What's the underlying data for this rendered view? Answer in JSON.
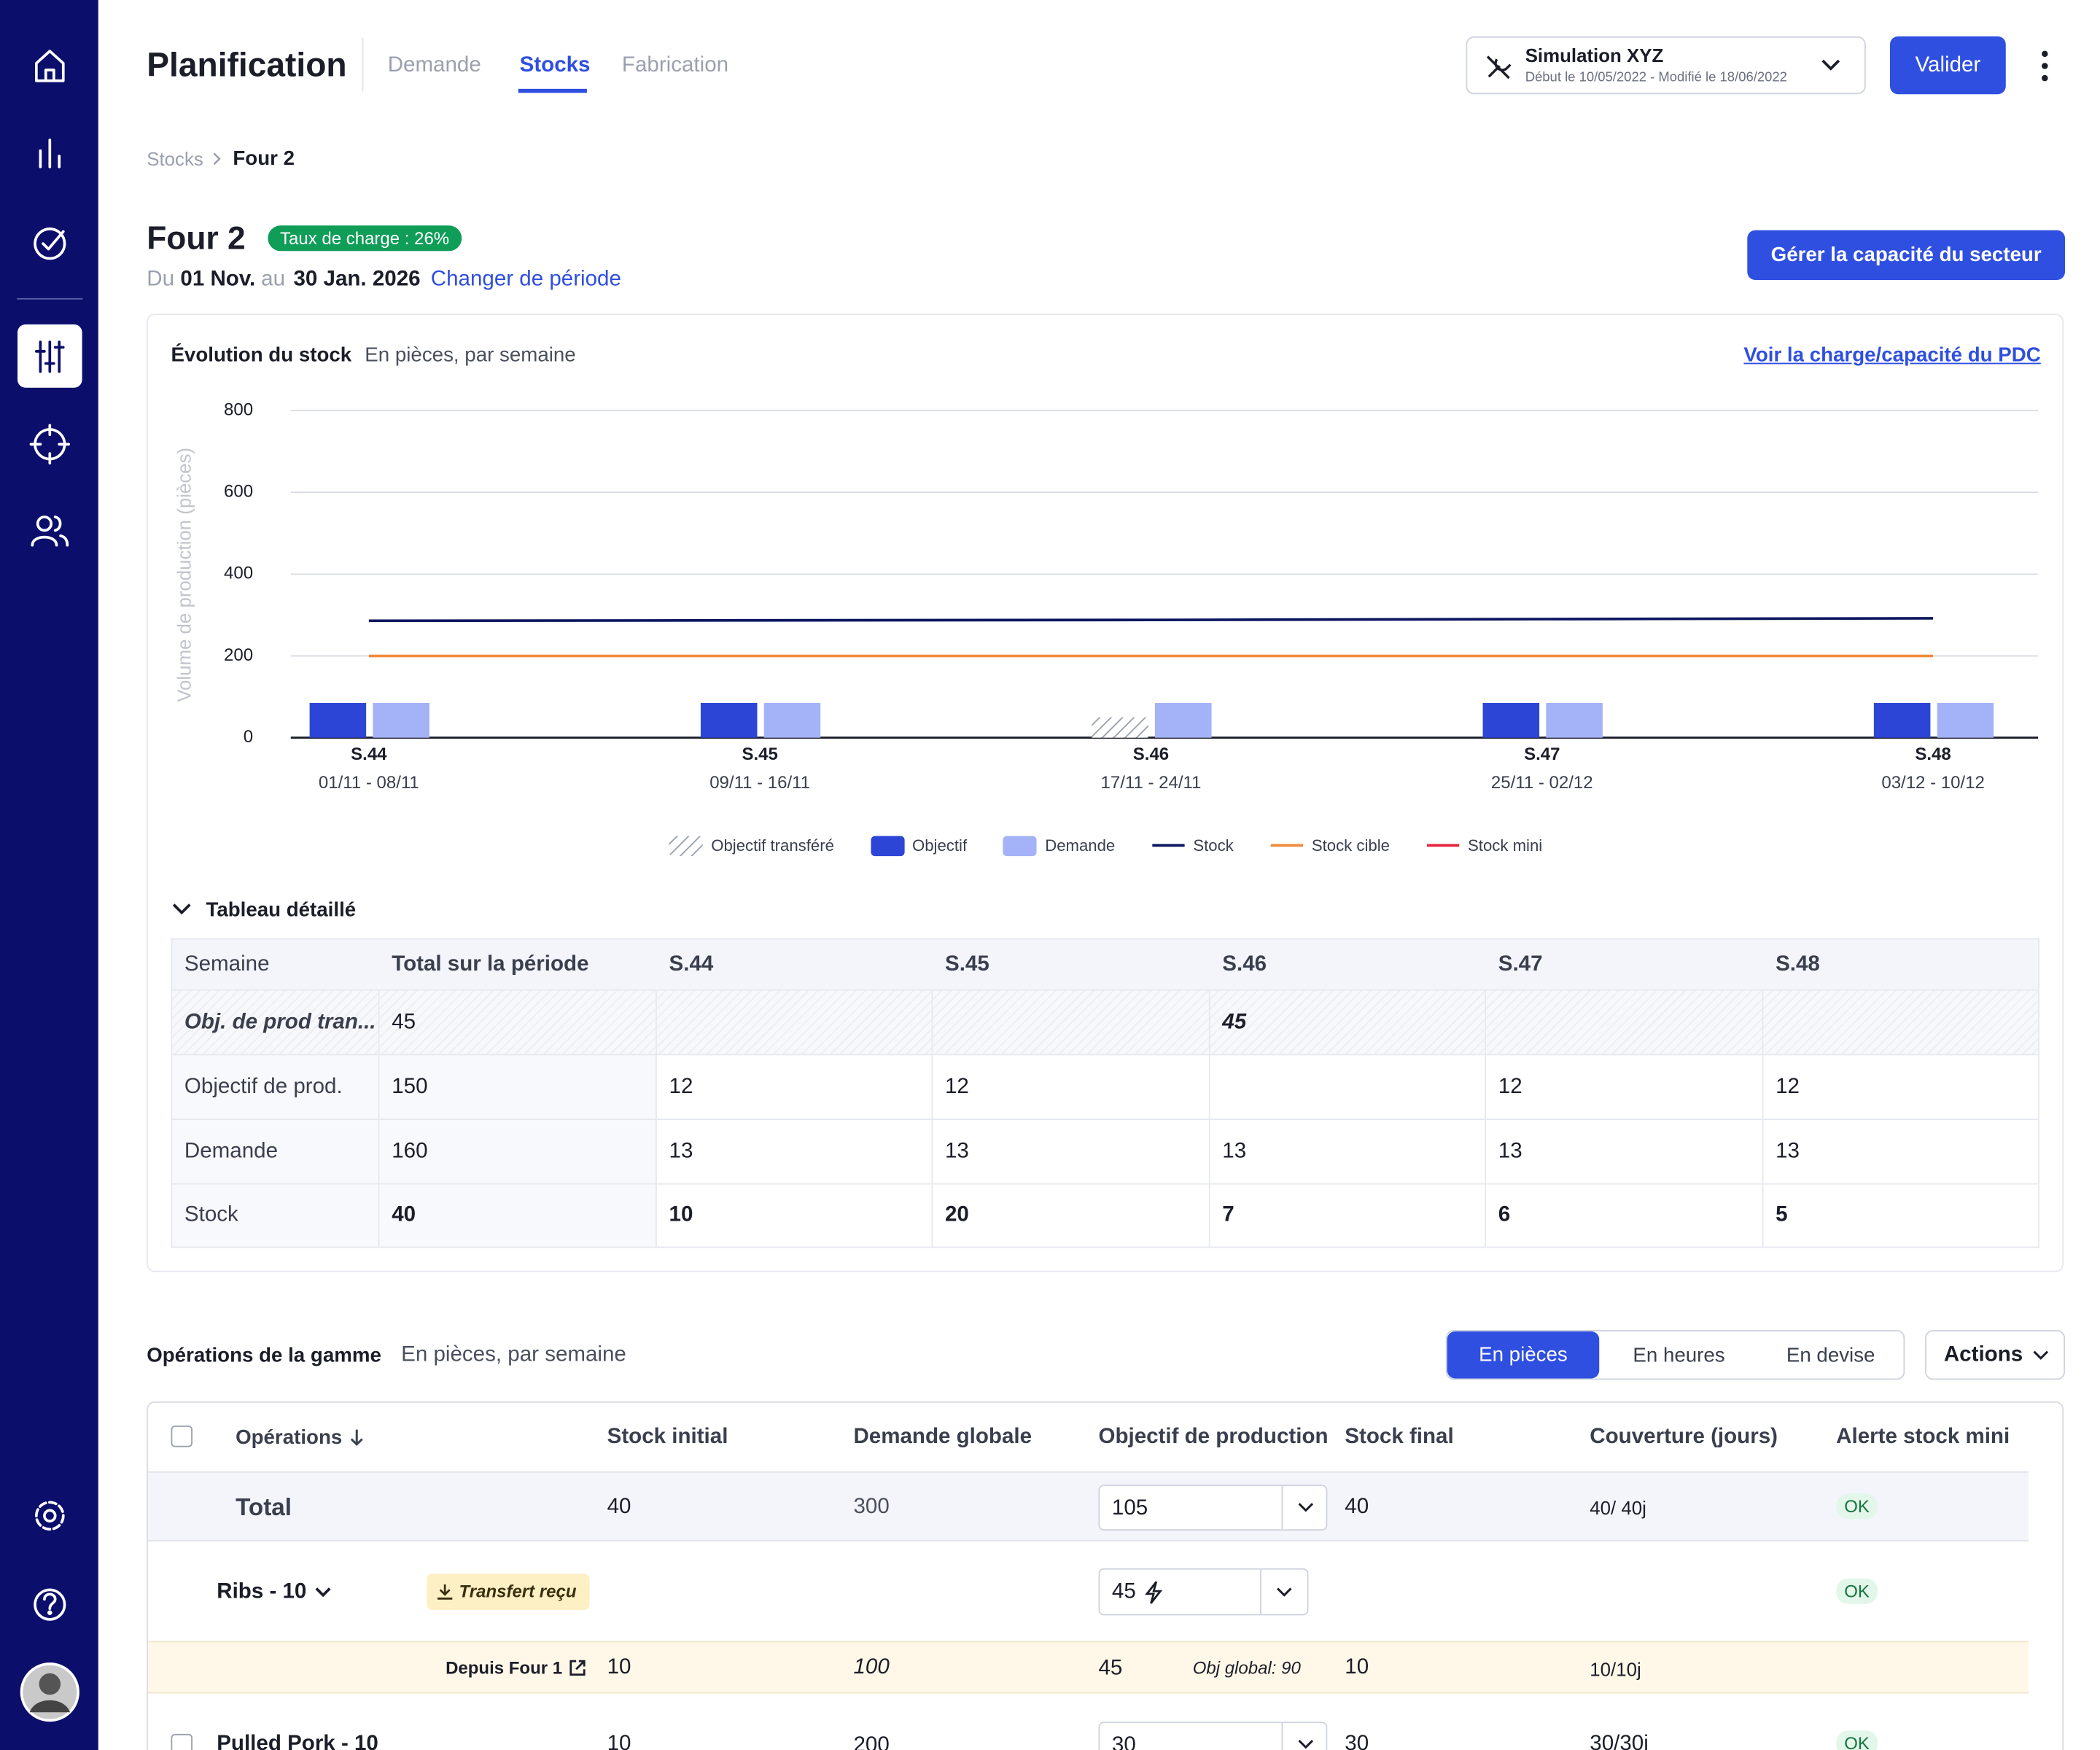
{
  "nav": {
    "title": "Planification",
    "tabs": [
      "Demande",
      "Stocks",
      "Fabrication"
    ],
    "active_tab": 1
  },
  "simulation": {
    "name": "Simulation XYZ",
    "meta": "Début le 10/05/2022 - Modifié le 18/06/2022"
  },
  "validate": "Valider",
  "breadcrumb": [
    "Stocks",
    "Four 2"
  ],
  "header": {
    "title": "Four 2",
    "badge": "Taux de charge : 26%",
    "from": "Du",
    "start": "01 Nov.",
    "to": "au",
    "end": "30 Jan. 2026",
    "change": "Changer de période",
    "capacity_button": "Gérer la capacité du secteur"
  },
  "chart_data": {
    "type": "bar",
    "title": "Évolution du stock",
    "subtitle": "En pièces, par semaine",
    "link": "Voir la charge/capacité du PDC",
    "y_label": "Volume de production (pièces)",
    "categories": [
      "S.44",
      "S.45",
      "S.46",
      "S.47",
      "S.48"
    ],
    "dates": [
      "01/11 - 08/11",
      "09/11 - 16/11",
      "17/11 - 24/11",
      "25/11 - 02/12",
      "03/12 - 10/12"
    ],
    "series": [
      {
        "name": "Objectif transféré",
        "type": "bar",
        "color": "#9aa0ad",
        "hatched": true,
        "values": [
          null,
          null,
          50,
          null,
          null
        ]
      },
      {
        "name": "Objectif",
        "type": "bar",
        "color": "#2d45d6",
        "values": [
          85,
          85,
          null,
          85,
          85
        ]
      },
      {
        "name": "Demande",
        "type": "bar",
        "color": "#a4b3f7",
        "values": [
          85,
          85,
          85,
          85,
          85
        ]
      },
      {
        "name": "Stock",
        "type": "line",
        "color": "#0c1660",
        "values": [
          286,
          287,
          288,
          290,
          292
        ]
      },
      {
        "name": "Stock cible",
        "type": "line",
        "color": "#f08a3c",
        "values": [
          200,
          200,
          200,
          200,
          200
        ]
      },
      {
        "name": "Stock mini",
        "type": "line",
        "color": "#e5243b",
        "values": [
          null,
          null,
          null,
          null,
          null
        ]
      }
    ],
    "ylim": [
      0,
      800
    ],
    "yticks": [
      0,
      200,
      400,
      600,
      800
    ],
    "grid": true
  },
  "detail_table": {
    "title": "Tableau détaillé",
    "columns": [
      "Semaine",
      "Total sur la période",
      "S.44",
      "S.45",
      "S.46",
      "S.47",
      "S.48"
    ],
    "rows": [
      [
        "Obj. de prod tran...",
        45,
        null,
        null,
        45,
        null,
        null
      ],
      [
        "Objectif de prod.",
        150,
        12,
        12,
        null,
        12,
        12
      ],
      [
        "Demande",
        160,
        13,
        13,
        13,
        13,
        13
      ],
      [
        "Stock",
        40,
        10,
        20,
        7,
        6,
        5
      ]
    ]
  },
  "operations": {
    "title": "Opérations de la gamme",
    "subtitle": "En pièces, par semaine",
    "units": [
      "En pièces",
      "En heures",
      "En devise"
    ],
    "active_unit": 0,
    "actions": "Actions",
    "columns": [
      "Opérations",
      "Stock initial",
      "Demande globale",
      "Objectif de production",
      "Stock final",
      "Couverture (jours)",
      "Alerte stock mini"
    ],
    "total": {
      "name": "Total",
      "stock_initial": 40,
      "demande": 300,
      "objectif": 105,
      "stock_final": 40,
      "couverture": "40/ 40j",
      "alerte": "OK"
    },
    "ribs": {
      "name": "Ribs - 10",
      "badge": "Transfert reçu",
      "objectif": 45,
      "alerte": "OK",
      "source": {
        "name": "Depuis Four 1",
        "stock_initial": 10,
        "demande": 100,
        "objectif": 45,
        "objectif_global": "Obj global: 90",
        "stock_final": 10,
        "couverture": "10/10j"
      }
    },
    "pulled_pork": {
      "name": "Pulled Pork - 10",
      "stock_initial": 10,
      "demande": 200,
      "objectif": 30,
      "stock_final": 30,
      "couverture": "30/30j",
      "alerte": "OK"
    }
  }
}
